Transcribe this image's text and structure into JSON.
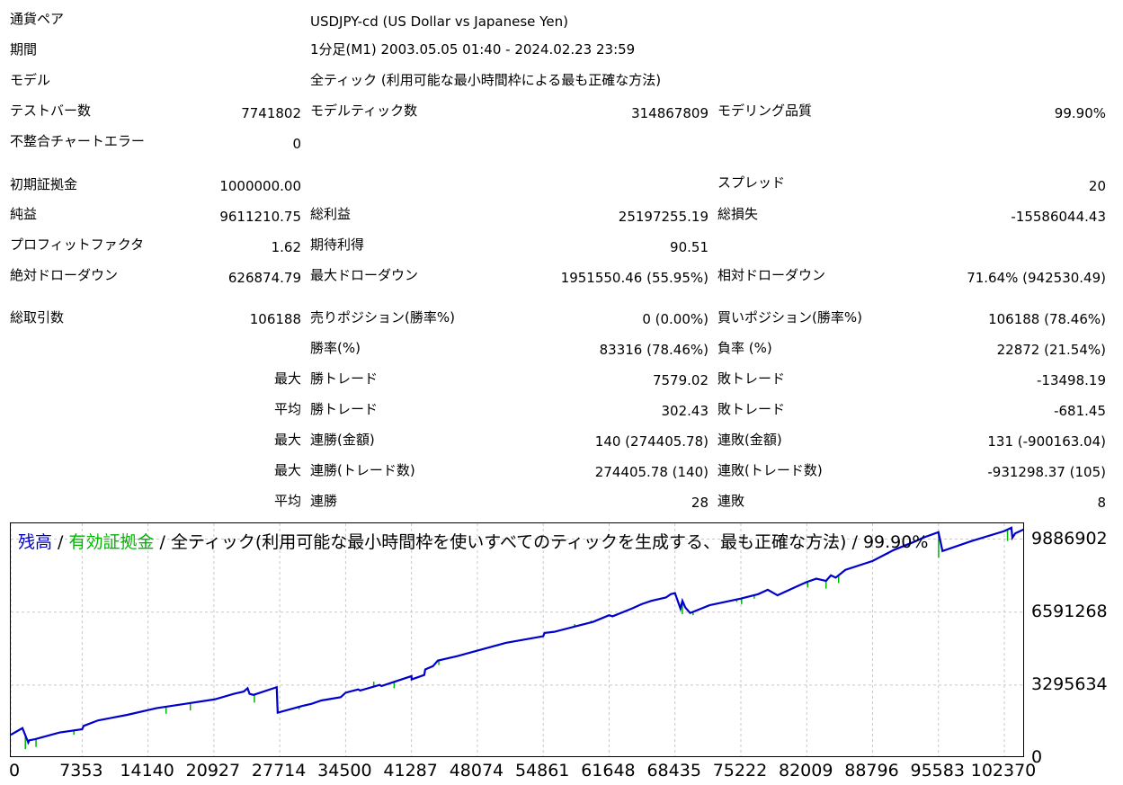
{
  "summary": {
    "currency_pair_label": "通貨ペア",
    "currency_pair_value": "USDJPY-cd (US Dollar vs Japanese Yen)",
    "period_label": "期間",
    "period_value": "1分足(M1) 2003.05.05 01:40 - 2024.02.23 23:59",
    "model_label": "モデル",
    "model_value": "全ティック (利用可能な最小時間枠による最も正確な方法)",
    "test_bars_label": "テストバー数",
    "test_bars_value": "7741802",
    "model_ticks_label": "モデルティック数",
    "model_ticks_value": "314867809",
    "modeling_quality_label": "モデリング品質",
    "modeling_quality_value": "99.90%",
    "chart_errors_label": "不整合チャートエラー",
    "chart_errors_value": "0"
  },
  "results": {
    "initial_deposit_label": "初期証拠金",
    "initial_deposit_value": "1000000.00",
    "spread_label": "スプレッド",
    "spread_value": "20",
    "net_profit_label": "純益",
    "net_profit_value": "9611210.75",
    "gross_profit_label": "総利益",
    "gross_profit_value": "25197255.19",
    "gross_loss_label": "総損失",
    "gross_loss_value": "-15586044.43",
    "profit_factor_label": "プロフィットファクタ",
    "profit_factor_value": "1.62",
    "expected_payoff_label": "期待利得",
    "expected_payoff_value": "90.51",
    "abs_drawdown_label": "絶対ドローダウン",
    "abs_drawdown_value": "626874.79",
    "max_drawdown_label": "最大ドローダウン",
    "max_drawdown_value": "1951550.46 (55.95%)",
    "rel_drawdown_label": "相対ドローダウン",
    "rel_drawdown_value": "71.64% (942530.49)"
  },
  "trades": {
    "total_label": "総取引数",
    "total_value": "106188",
    "short_label": "売りポジション(勝率%)",
    "short_value": "0 (0.00%)",
    "long_label": "買いポジション(勝率%)",
    "long_value": "106188 (78.46%)",
    "win_rate_label": "勝率(%)",
    "win_rate_value": "83316 (78.46%)",
    "loss_rate_label": "負率 (%)",
    "loss_rate_value": "22872 (21.54%)",
    "max_label": "最大",
    "avg_label": "平均",
    "win_trade_label": "勝トレード",
    "loss_trade_label": "敗トレード",
    "max_win_value": "7579.02",
    "max_loss_value": "-13498.19",
    "avg_win_value": "302.43",
    "avg_loss_value": "-681.45",
    "consec_win_amount_label": "連勝(金額)",
    "consec_win_amount_value": "140 (274405.78)",
    "consec_loss_amount_label": "連敗(金額)",
    "consec_loss_amount_value": "131 (-900163.04)",
    "consec_win_count_label": "連勝(トレード数)",
    "consec_win_count_value": "274405.78 (140)",
    "consec_loss_count_label": "連敗(トレード数)",
    "consec_loss_count_value": "-931298.37 (105)",
    "avg_consec_win_label": "連勝",
    "avg_consec_win_value": "28",
    "avg_consec_loss_label": "連敗",
    "avg_consec_loss_value": "8"
  },
  "chart_data": {
    "type": "line",
    "legend": {
      "balance": "残高",
      "sep1": " / ",
      "equity": "有効証拠金",
      "sep2": " / ",
      "model_text": "全ティック(利用可能な最小時間枠を使いすべてのティックを生成する、最も正確な方法) / 99.90%"
    },
    "colors": {
      "balance": "#0000cc",
      "equity": "#00b400",
      "grid": "#c8c8c8"
    },
    "grid": true,
    "x_ticks": [
      "0",
      "7353",
      "14140",
      "20927",
      "27714",
      "34500",
      "41287",
      "48074",
      "54861",
      "61648",
      "68435",
      "75222",
      "82009",
      "88796",
      "95583",
      "102370"
    ],
    "x_tick_values": [
      0,
      7353,
      14140,
      20927,
      27714,
      34500,
      41287,
      48074,
      54861,
      61648,
      68435,
      75222,
      82009,
      88796,
      95583,
      102370
    ],
    "y_ticks": [
      "0",
      "3295634",
      "6591268",
      "9886902"
    ],
    "y_tick_values": [
      0,
      3295634,
      6591268,
      9886902
    ],
    "xlim": [
      0,
      104500
    ],
    "ylim": [
      0,
      10600000
    ],
    "series": [
      {
        "name": "残高",
        "x": [
          0,
          1200,
          1800,
          1900,
          2500,
          5000,
          7353,
          7500,
          9000,
          12000,
          15000,
          18000,
          21000,
          23000,
          24000,
          24400,
          24600,
          25000,
          27400,
          27500,
          30000,
          31000,
          32000,
          34000,
          34500,
          35800,
          36000,
          38000,
          38200,
          41287,
          41300,
          42600,
          42700,
          43500,
          44000,
          46000,
          48074,
          51000,
          54861,
          55000,
          56000,
          60000,
          61648,
          62000,
          64000,
          65000,
          66000,
          67500,
          68000,
          68435,
          69000,
          69200,
          69500,
          70000,
          72000,
          75222,
          77000,
          78000,
          79000,
          81000,
          82009,
          83000,
          84000,
          84500,
          85000,
          86000,
          88796,
          91000,
          93000,
          94000,
          95583,
          96000,
          99000,
          102370,
          103100,
          103200,
          103500,
          104500
        ],
        "y": [
          1050000,
          1350000,
          700000,
          800000,
          850000,
          1150000,
          1300000,
          1450000,
          1700000,
          1950000,
          2250000,
          2450000,
          2650000,
          2900000,
          3000000,
          3150000,
          2900000,
          2850000,
          3200000,
          2050000,
          2350000,
          2450000,
          2600000,
          2750000,
          2950000,
          3100000,
          3050000,
          3300000,
          3250000,
          3700000,
          3550000,
          3750000,
          4000000,
          4150000,
          4400000,
          4600000,
          4850000,
          5200000,
          5500000,
          5650000,
          5700000,
          6150000,
          6450000,
          6400000,
          6750000,
          6950000,
          7100000,
          7250000,
          7400000,
          7450000,
          6750000,
          7100000,
          6800000,
          6550000,
          6900000,
          7200000,
          7400000,
          7600000,
          7350000,
          7750000,
          7950000,
          8100000,
          8000000,
          8250000,
          8150000,
          8500000,
          8900000,
          9400000,
          9750000,
          9950000,
          10200000,
          9350000,
          9800000,
          10250000,
          10400000,
          9950000,
          10150000,
          10350000
        ]
      },
      {
        "name": "有効証拠金",
        "dips_x": [
          1500,
          2600,
          6500,
          16000,
          18500,
          25100,
          29700,
          30400,
          37400,
          39500,
          44100,
          50200,
          58100,
          59800,
          69200,
          70300,
          74800,
          75300,
          76600,
          82100,
          84000,
          85300,
          90400,
          95600,
          97900,
          102700
        ],
        "dips_y": [
          400000,
          500000,
          1050000,
          2000000,
          2150000,
          2500000,
          2200000,
          2350000,
          3450000,
          3150000,
          4200000,
          5050000,
          6050000,
          6200000,
          6500000,
          6450000,
          7050000,
          6950000,
          7200000,
          7700000,
          7650000,
          7900000,
          9200000,
          9050000,
          9600000,
          9800000
        ]
      }
    ]
  }
}
